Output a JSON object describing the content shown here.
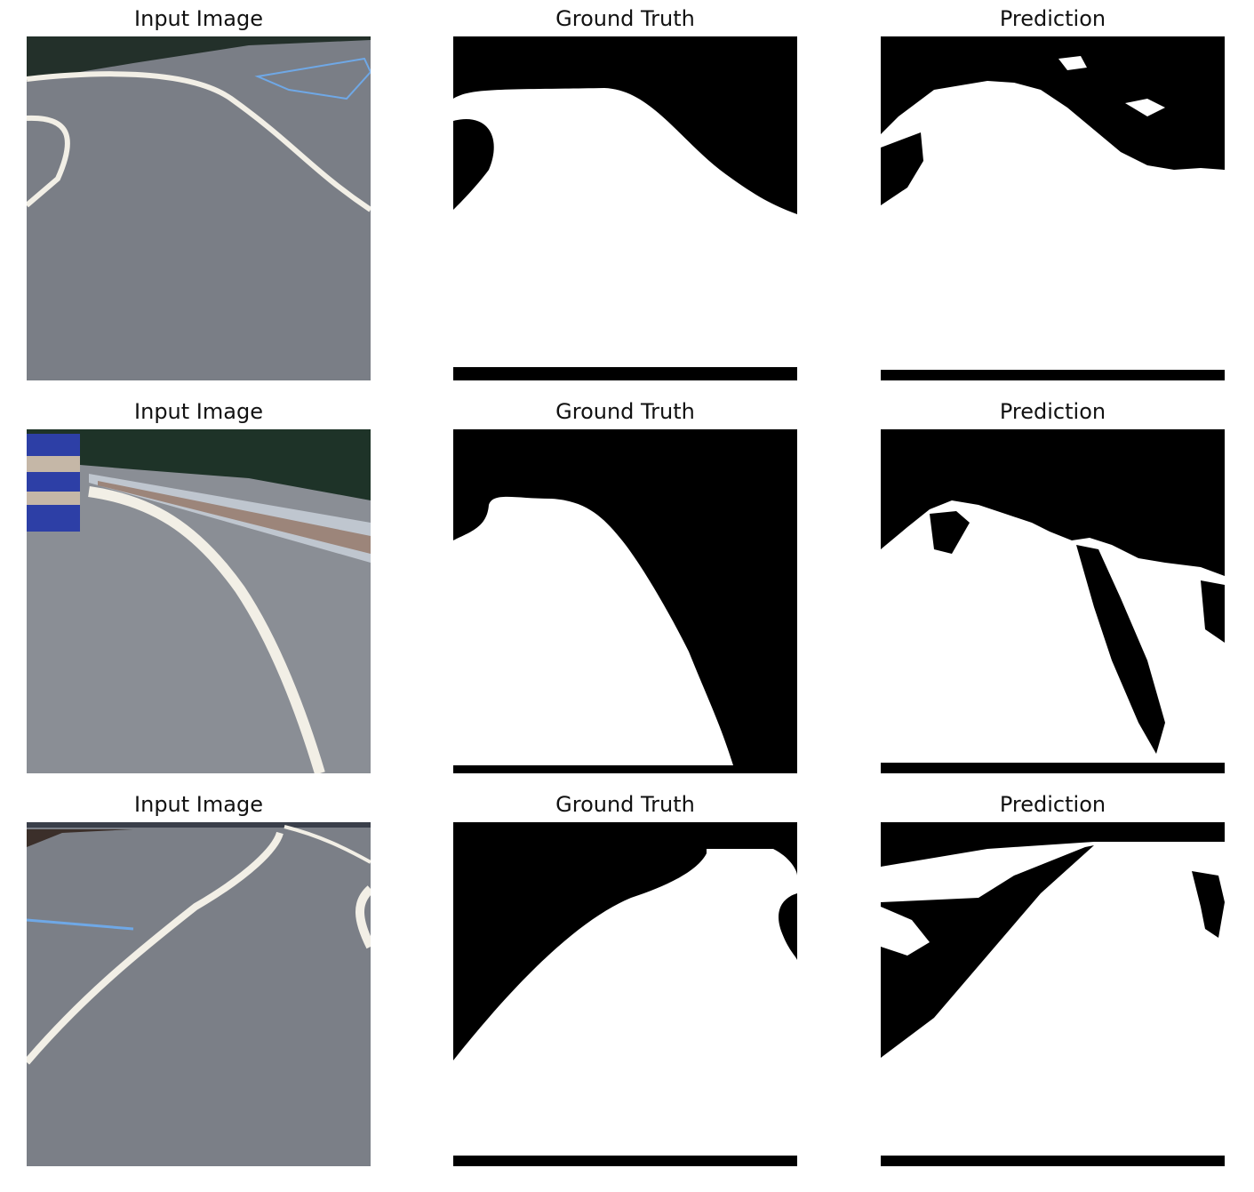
{
  "figure": {
    "rows": [
      {
        "input_title": "Input Image",
        "gt_title": "Ground Truth",
        "pred_title": "Prediction"
      },
      {
        "input_title": "Input Image",
        "gt_title": "Ground Truth",
        "pred_title": "Prediction"
      },
      {
        "input_title": "Input Image",
        "gt_title": "Ground Truth",
        "pred_title": "Prediction"
      }
    ]
  },
  "colors": {
    "mask_foreground": "#ffffff",
    "mask_background": "#000000",
    "asphalt": "#7d8189",
    "lane_line": "#f2efe6",
    "parking_line": "#6fa8e6",
    "cone_blue": "#2d3fa6",
    "trees": "#1e3328"
  }
}
